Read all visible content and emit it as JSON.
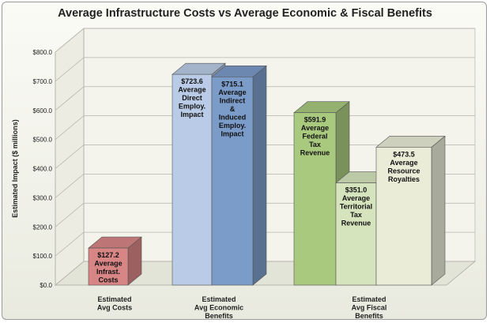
{
  "chart_data": {
    "type": "bar",
    "title": "Average Infrastructure Costs vs Average Economic & Fiscal Benefits",
    "ylabel": "Estimated Impact ($ millions)",
    "ylim": [
      0,
      800
    ],
    "ytick_labels": [
      "$0.0",
      "$100.0",
      "$200.0",
      "$300.0",
      "$400.0",
      "$500.0",
      "$600.0",
      "$700.0",
      "$800.0"
    ],
    "grid": true,
    "three_d": true,
    "groups": [
      {
        "label": [
          "Estimated",
          "Avg Costs"
        ],
        "bars": [
          0
        ]
      },
      {
        "label": [
          "Estimated",
          "Avg Economic",
          "Benefits"
        ],
        "bars": [
          1,
          2
        ]
      },
      {
        "label": [
          "Estimated",
          "Avg Fiscal",
          "Benefits"
        ],
        "bars": [
          3,
          4,
          5
        ]
      }
    ],
    "bars": [
      {
        "value": 127.2,
        "label": [
          "$127.2",
          "Average",
          "Infrast.",
          "Costs"
        ],
        "color": "#d88585"
      },
      {
        "value": 723.6,
        "label": [
          "$723.6",
          "Average",
          "Direct",
          "Employ.",
          "Impact"
        ],
        "color": "#b9cbe6"
      },
      {
        "value": 715.1,
        "label": [
          "$715.1",
          "Average",
          "Indirect",
          "&",
          "Induced",
          "Employ.",
          "Impact"
        ],
        "color": "#7b9bc9"
      },
      {
        "value": 591.9,
        "label": [
          "$591.9",
          "Average",
          "Federal",
          "Tax",
          "Revenue"
        ],
        "color": "#a9c97e"
      },
      {
        "value": 351.0,
        "label": [
          "$351.0",
          "Average",
          "Territorial",
          "Tax",
          "Revenue"
        ],
        "color": "#d5e4bd"
      },
      {
        "value": 473.5,
        "label": [
          "$473.5",
          "Average",
          "Resource",
          "Royalties"
        ],
        "color": "#eaecd8"
      }
    ]
  }
}
